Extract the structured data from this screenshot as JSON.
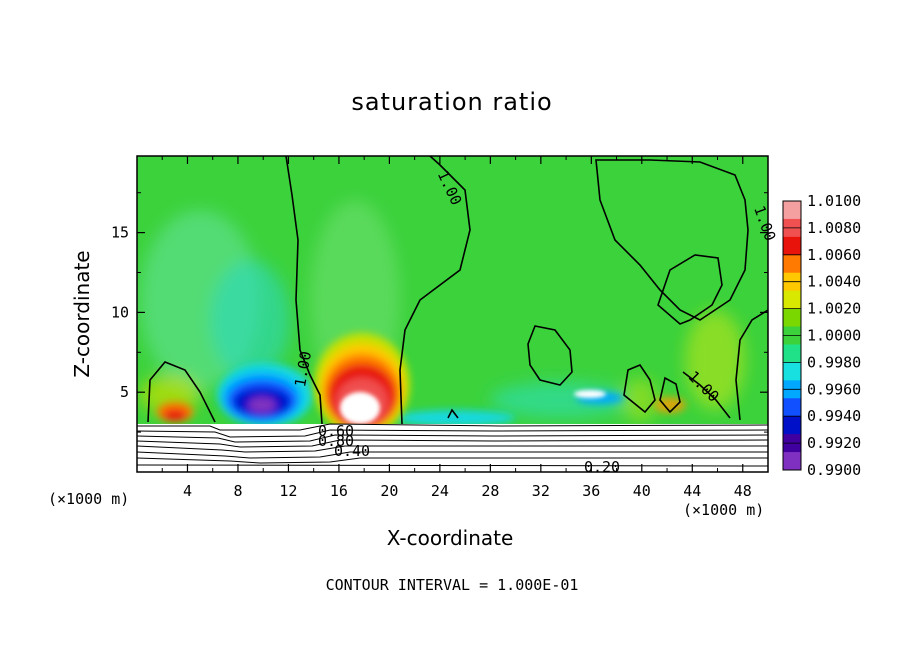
{
  "chart_data": {
    "type": "heatmap",
    "title": "saturation ratio",
    "xlabel": "X-coordinate",
    "ylabel": "Z-coordinate",
    "x_unit": "(×1000 m)",
    "x_ticks": [
      "4",
      "8",
      "12",
      "16",
      "20",
      "24",
      "28",
      "32",
      "36",
      "40",
      "44",
      "48"
    ],
    "x_tick_values": [
      4,
      8,
      12,
      16,
      20,
      24,
      28,
      32,
      36,
      40,
      44,
      48
    ],
    "xlim": [
      0,
      50
    ],
    "y_ticks": [
      "5",
      "10",
      "15"
    ],
    "y_tick_values": [
      5,
      10,
      15
    ],
    "ylim": [
      0,
      19.8
    ],
    "colorbar": {
      "labels": [
        "1.0100",
        "1.0080",
        "1.0060",
        "1.0040",
        "1.0020",
        "1.0000",
        "0.9980",
        "0.9960",
        "0.9940",
        "0.9920",
        "0.9900"
      ],
      "values": [
        1.01,
        1.008,
        1.006,
        1.004,
        1.002,
        1.0,
        0.998,
        0.996,
        0.994,
        0.992,
        0.99
      ],
      "colors": [
        "#f4a0a0",
        "#f0504f",
        "#e8140c",
        "#ff7a00",
        "#ffc800",
        "#d8e800",
        "#7ad800",
        "#3cd23c",
        "#20e088",
        "#18e0e0",
        "#00a8ff",
        "#1050ff",
        "#0010c8",
        "#4000a0",
        "#8030c0"
      ]
    },
    "contour_labels": [
      "1.00",
      "1.00",
      "1.00",
      "1.00",
      "0.40",
      "0.80",
      "0.60",
      "0.20"
    ],
    "contour_interval_text": "CONTOUR INTERVAL = 1.000E-01"
  }
}
